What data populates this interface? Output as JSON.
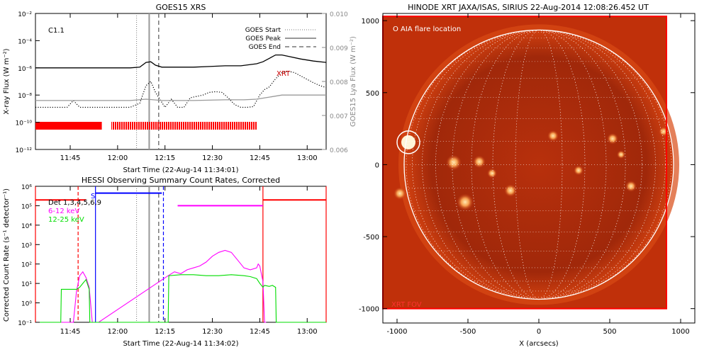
{
  "chart_data": [
    {
      "type": "line",
      "title": "GOES15 XRS",
      "xlabel": "Start Time (22-Aug-14 11:34:01)",
      "ylabel": "X-ray Flux (W m⁻²)",
      "ylabel_right": "GOES15 Lya Flux (W m⁻²)",
      "x_ticks": [
        "11:45",
        "12:00",
        "12:15",
        "12:30",
        "12:45",
        "13:00"
      ],
      "y_ticks": [
        "10⁻²",
        "10⁻⁴",
        "10⁻⁶",
        "10⁻⁸",
        "10⁻¹⁰",
        "10⁻¹²"
      ],
      "y_ticks_right": [
        "0.010",
        "0.009",
        "0.008",
        "0.007",
        "0.006"
      ],
      "ylim_log10": [
        -12,
        -2
      ],
      "ylim_right": [
        0.006,
        0.01
      ],
      "xlim_minutes": [
        0,
        92
      ],
      "log_y": true,
      "class_label": "C1.1",
      "annotation": "XRT",
      "legend": [
        "GOES Start",
        "GOES Peak",
        "GOES End"
      ],
      "legend_position": "top-right",
      "markers_minutes": {
        "start": 32,
        "peak": 36,
        "end": 39
      },
      "series": [
        {
          "name": "long",
          "color": "#000000",
          "dash": "solid",
          "x": [
            0,
            8,
            16,
            24,
            30,
            33,
            35,
            36.5,
            38,
            40,
            44,
            50,
            55,
            60,
            65,
            70,
            72,
            74,
            76,
            78,
            80,
            84,
            88,
            92
          ],
          "y": [
            -6.0,
            -6.0,
            -6.0,
            -6.0,
            -6.0,
            -5.95,
            -5.6,
            -5.55,
            -5.8,
            -5.95,
            -5.95,
            -5.95,
            -5.9,
            -5.85,
            -5.85,
            -5.7,
            -5.55,
            -5.3,
            -5.05,
            -5.05,
            -5.15,
            -5.35,
            -5.5,
            -5.6
          ]
        },
        {
          "name": "short",
          "color": "#000000",
          "dash": "dotted",
          "x": [
            0,
            5,
            10,
            12,
            14,
            16,
            20,
            25,
            30,
            33,
            35,
            36.5,
            38,
            41,
            43,
            45,
            47,
            49,
            51,
            53,
            55,
            57,
            59,
            61,
            63,
            65,
            67,
            69,
            71,
            72.5,
            74,
            76,
            78,
            80,
            82,
            84,
            86,
            88,
            90,
            92
          ],
          "y": [
            -8.9,
            -8.9,
            -8.9,
            -8.4,
            -8.9,
            -8.9,
            -8.9,
            -8.9,
            -8.9,
            -8.6,
            -7.3,
            -7.0,
            -7.8,
            -8.9,
            -8.3,
            -8.9,
            -8.9,
            -8.2,
            -8.1,
            -8.0,
            -7.8,
            -7.75,
            -7.8,
            -8.2,
            -8.7,
            -8.9,
            -8.9,
            -8.85,
            -8.0,
            -7.6,
            -7.4,
            -6.8,
            -6.35,
            -6.25,
            -6.35,
            -6.6,
            -6.85,
            -7.1,
            -7.3,
            -7.45
          ]
        },
        {
          "name": "lya",
          "color": "#999999",
          "dash": "solid",
          "x": [
            0,
            10,
            20,
            30,
            35,
            40,
            50,
            60,
            66,
            70,
            74,
            78,
            82,
            86,
            92
          ],
          "y": [
            -8.4,
            -8.4,
            -8.4,
            -8.4,
            -8.3,
            -8.4,
            -8.4,
            -8.35,
            -8.35,
            -8.3,
            -8.15,
            -8.0,
            -8.0,
            -8.0,
            -8.0
          ]
        }
      ],
      "coverage_bars": [
        {
          "start_minutes": 0,
          "end_minutes": 21,
          "style": "solid",
          "color": "#ff0000"
        },
        {
          "start_minutes": 24,
          "end_minutes": 70,
          "style": "striped",
          "color": "#ff0000"
        }
      ]
    },
    {
      "type": "line",
      "title": "HESSI Observing Summary Count Rates, Corrected",
      "xlabel": "Start Time (22-Aug-14 11:34:02)",
      "ylabel": "Corrected Count Rate (s⁻¹ detector⁻¹)",
      "x_ticks": [
        "11:45",
        "12:00",
        "12:15",
        "12:30",
        "12:45",
        "13:00"
      ],
      "y_ticks": [
        "10⁶",
        "10⁵",
        "10⁴",
        "10³",
        "10²",
        "10¹",
        "10⁰",
        "10⁻¹"
      ],
      "ylim_log10": [
        -1,
        6
      ],
      "xlim_minutes": [
        0,
        92
      ],
      "log_y": true,
      "detector_label": "Det 1,3,4,5,6,9",
      "legend": [
        "6-12 keV",
        "12-25 keV"
      ],
      "legend_position": "top-left",
      "legend_colors": [
        "#ff00ff",
        "#00dd00"
      ],
      "s_marker": "S",
      "markers_minutes": {
        "start": 32,
        "peak": 36,
        "end": 39
      },
      "series": [
        {
          "name": "6-12 keV",
          "color": "#ff00ff",
          "x": [
            4,
            6,
            8,
            10,
            12,
            13,
            14,
            15,
            16,
            17,
            18,
            19,
            20,
            42,
            44,
            46,
            48,
            50,
            52,
            54,
            56,
            58,
            60,
            62,
            64,
            66,
            68,
            70,
            70.5,
            71,
            71.5,
            72,
            72.5,
            73
          ],
          "y": [
            -1,
            -1,
            -1,
            -1,
            -1,
            0.6,
            1.4,
            1.6,
            1.3,
            0.8,
            -1,
            -1,
            -1,
            1.4,
            1.6,
            1.5,
            1.7,
            1.8,
            1.9,
            2.1,
            2.4,
            2.6,
            2.7,
            2.6,
            2.2,
            1.8,
            1.7,
            1.8,
            2.0,
            1.9,
            1.5,
            1.1,
            -1,
            -1
          ]
        },
        {
          "name": "12-25 keV",
          "color": "#00dd00",
          "x": [
            0,
            8,
            8.2,
            9,
            11,
            13,
            14,
            15,
            16,
            17,
            17.2,
            18,
            38,
            42,
            42.2,
            46,
            50,
            54,
            58,
            62,
            66,
            68,
            70,
            71,
            72,
            72.2,
            72.5,
            74,
            75,
            76,
            76.2,
            80,
            92
          ],
          "y": [
            -1,
            -1,
            0.7,
            0.7,
            0.7,
            0.7,
            0.8,
            1.0,
            1.2,
            0.7,
            -1,
            -1,
            -1,
            -1,
            1.4,
            1.45,
            1.45,
            1.4,
            1.4,
            1.45,
            1.4,
            1.35,
            1.25,
            1.0,
            0.8,
            0.85,
            0.9,
            0.85,
            0.9,
            0.8,
            -1,
            -1,
            -1
          ]
        }
      ],
      "state_lines": [
        {
          "name": "attenuator",
          "color": "#ff0000",
          "x": [
            0,
            16
          ],
          "y": 5.3
        },
        {
          "name": "attenuator-late",
          "color": "#ff0000",
          "x": [
            72,
            92
          ],
          "y": 5.3
        },
        {
          "name": "saa-level",
          "color": "#0000ff",
          "x": [
            19,
            40
          ],
          "y": 5.65
        },
        {
          "name": "night",
          "color": "#ff00ff",
          "x": [
            45,
            72
          ],
          "y": 5.0
        }
      ],
      "vertical_lines": [
        {
          "color": "#ff0000",
          "x": 0,
          "dash": "solid"
        },
        {
          "color": "#ff0000",
          "x": 13.5,
          "dash": "dashed"
        },
        {
          "color": "#0000ff",
          "x": 19,
          "dash": "solid"
        },
        {
          "color": "#0000ff",
          "x": 40.5,
          "dash": "dashed"
        },
        {
          "color": "#ff0000",
          "x": 72,
          "dash": "solid"
        },
        {
          "color": "#ff0000",
          "x": 92,
          "dash": "solid"
        }
      ]
    },
    {
      "type": "heatmap",
      "title": "HINODE XRT JAXA/ISAS, SIRIUS 22-Aug-2014 12:08:26.452 UT",
      "xlabel": "X (arcsecs)",
      "ylabel": "",
      "x_ticks": [
        "-1000",
        "-500",
        "0",
        "500",
        "1000"
      ],
      "y_ticks": [
        "1000",
        "500",
        "0",
        "-500",
        "-1000"
      ],
      "xlim": [
        -1100,
        1100
      ],
      "ylim": [
        -1100,
        1050
      ],
      "solar_radius_arcsec": 950,
      "annotation_top": "O AIA flare location",
      "annotation_bottom": "XRT FOV",
      "flare_location": {
        "x": -920,
        "y": 155
      },
      "colors": {
        "disk_dark": "#8b1a00",
        "disk_mid": "#c0300a",
        "bright": "#ffd9a0",
        "fov": "#ff0000"
      }
    }
  ]
}
